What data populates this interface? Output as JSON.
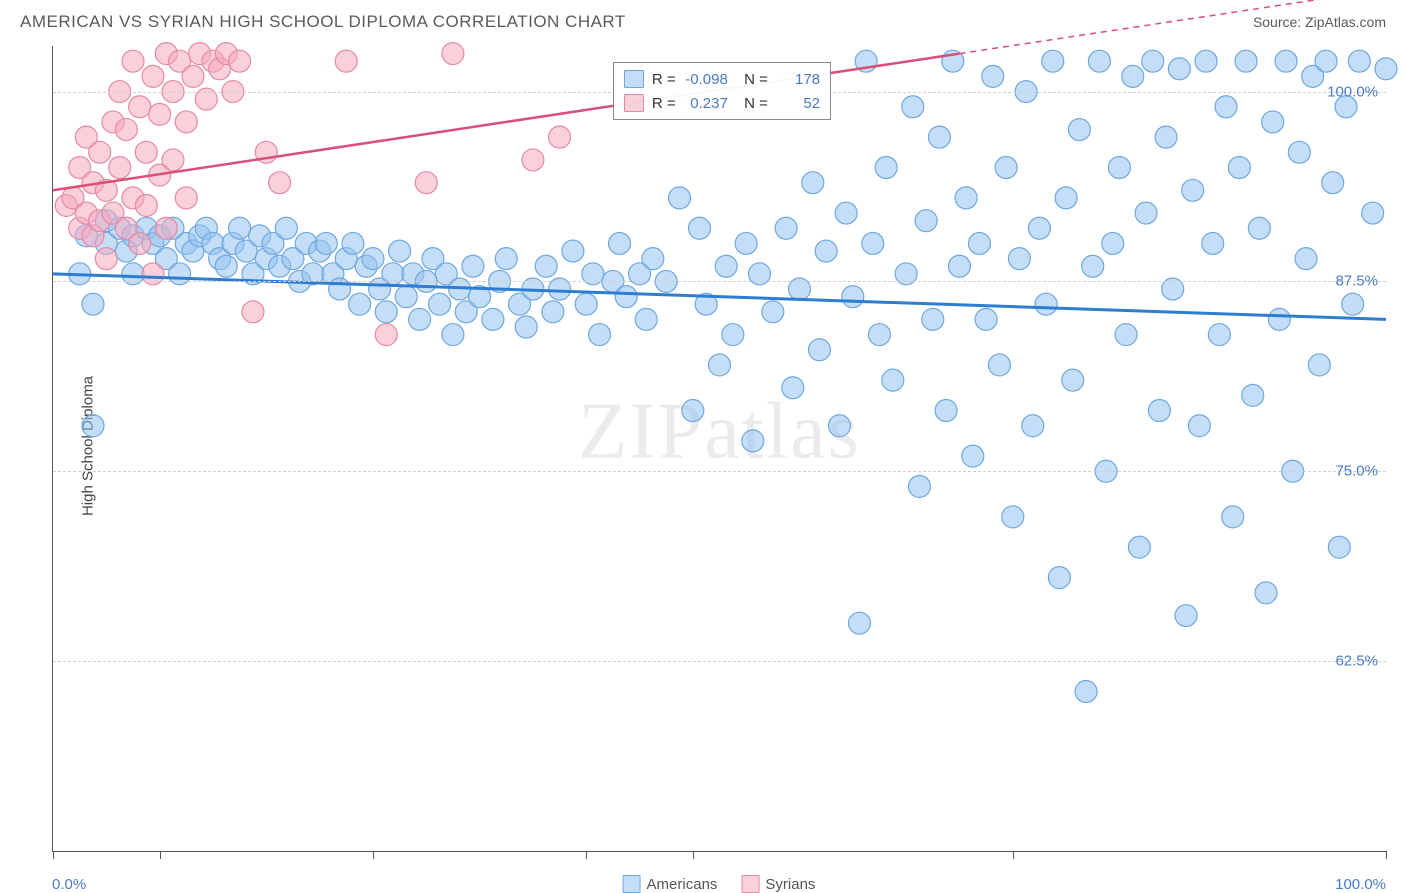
{
  "header": {
    "title": "AMERICAN VS SYRIAN HIGH SCHOOL DIPLOMA CORRELATION CHART",
    "source": "Source: ZipAtlas.com"
  },
  "chart": {
    "type": "scatter",
    "ylabel": "High School Diploma",
    "watermark": "ZIPatlas",
    "xlim": [
      0,
      100
    ],
    "ylim": [
      50,
      103
    ],
    "xtick_positions": [
      0,
      8,
      24,
      40,
      48,
      72,
      100
    ],
    "xaxis_min_label": "0.0%",
    "xaxis_max_label": "100.0%",
    "yticks": [
      {
        "value": 62.5,
        "label": "62.5%"
      },
      {
        "value": 75.0,
        "label": "75.0%"
      },
      {
        "value": 87.5,
        "label": "87.5%"
      },
      {
        "value": 100.0,
        "label": "100.0%"
      }
    ],
    "grid_color": "#d0d0d0",
    "background_color": "#ffffff",
    "series": [
      {
        "name": "Americans",
        "color_fill": "rgba(150,195,240,0.55)",
        "color_stroke": "#6fa8e0",
        "marker_radius": 11,
        "trend": {
          "x1": 0,
          "y1": 88.0,
          "x2": 100,
          "y2": 85.0,
          "color": "#2d7dd2",
          "width": 3
        },
        "corr_R": "-0.098",
        "corr_N": "178",
        "points": [
          [
            2,
            88
          ],
          [
            2.5,
            90.5
          ],
          [
            3,
            86
          ],
          [
            3,
            78
          ],
          [
            4,
            90
          ],
          [
            4,
            91.5
          ],
          [
            5,
            91
          ],
          [
            5.5,
            89.5
          ],
          [
            6,
            90.5
          ],
          [
            6,
            88
          ],
          [
            7,
            91
          ],
          [
            7.5,
            90
          ],
          [
            8,
            90.5
          ],
          [
            8.5,
            89
          ],
          [
            9,
            91
          ],
          [
            9.5,
            88
          ],
          [
            10,
            90
          ],
          [
            10.5,
            89.5
          ],
          [
            11,
            90.5
          ],
          [
            11.5,
            91
          ],
          [
            12,
            90
          ],
          [
            12.5,
            89
          ],
          [
            13,
            88.5
          ],
          [
            13.5,
            90
          ],
          [
            14,
            91
          ],
          [
            14.5,
            89.5
          ],
          [
            15,
            88
          ],
          [
            15.5,
            90.5
          ],
          [
            16,
            89
          ],
          [
            16.5,
            90
          ],
          [
            17,
            88.5
          ],
          [
            17.5,
            91
          ],
          [
            18,
            89
          ],
          [
            18.5,
            87.5
          ],
          [
            19,
            90
          ],
          [
            19.5,
            88
          ],
          [
            20,
            89.5
          ],
          [
            20.5,
            90
          ],
          [
            21,
            88
          ],
          [
            21.5,
            87
          ],
          [
            22,
            89
          ],
          [
            22.5,
            90
          ],
          [
            23,
            86
          ],
          [
            23.5,
            88.5
          ],
          [
            24,
            89
          ],
          [
            24.5,
            87
          ],
          [
            25,
            85.5
          ],
          [
            25.5,
            88
          ],
          [
            26,
            89.5
          ],
          [
            26.5,
            86.5
          ],
          [
            27,
            88
          ],
          [
            27.5,
            85
          ],
          [
            28,
            87.5
          ],
          [
            28.5,
            89
          ],
          [
            29,
            86
          ],
          [
            29.5,
            88
          ],
          [
            30,
            84
          ],
          [
            30.5,
            87
          ],
          [
            31,
            85.5
          ],
          [
            31.5,
            88.5
          ],
          [
            32,
            86.5
          ],
          [
            33,
            85
          ],
          [
            33.5,
            87.5
          ],
          [
            34,
            89
          ],
          [
            35,
            86
          ],
          [
            35.5,
            84.5
          ],
          [
            36,
            87
          ],
          [
            37,
            88.5
          ],
          [
            37.5,
            85.5
          ],
          [
            38,
            87
          ],
          [
            39,
            89.5
          ],
          [
            40,
            86
          ],
          [
            40.5,
            88
          ],
          [
            41,
            84
          ],
          [
            42,
            87.5
          ],
          [
            42.5,
            90
          ],
          [
            43,
            86.5
          ],
          [
            44,
            88
          ],
          [
            44.5,
            85
          ],
          [
            45,
            89
          ],
          [
            46,
            87.5
          ],
          [
            47,
            93
          ],
          [
            48,
            79
          ],
          [
            48.5,
            91
          ],
          [
            49,
            86
          ],
          [
            50,
            82
          ],
          [
            50.5,
            88.5
          ],
          [
            51,
            84
          ],
          [
            52,
            90
          ],
          [
            52.5,
            77
          ],
          [
            53,
            88
          ],
          [
            54,
            85.5
          ],
          [
            55,
            91
          ],
          [
            55.5,
            80.5
          ],
          [
            56,
            87
          ],
          [
            57,
            94
          ],
          [
            57.5,
            83
          ],
          [
            58,
            89.5
          ],
          [
            59,
            78
          ],
          [
            59.5,
            92
          ],
          [
            60,
            86.5
          ],
          [
            60.5,
            65
          ],
          [
            61,
            102
          ],
          [
            61.5,
            90
          ],
          [
            62,
            84
          ],
          [
            62.5,
            95
          ],
          [
            63,
            81
          ],
          [
            64,
            88
          ],
          [
            64.5,
            99
          ],
          [
            65,
            74
          ],
          [
            65.5,
            91.5
          ],
          [
            66,
            85
          ],
          [
            66.5,
            97
          ],
          [
            67,
            79
          ],
          [
            67.5,
            102
          ],
          [
            68,
            88.5
          ],
          [
            68.5,
            93
          ],
          [
            69,
            76
          ],
          [
            69.5,
            90
          ],
          [
            70,
            85
          ],
          [
            70.5,
            101
          ],
          [
            71,
            82
          ],
          [
            71.5,
            95
          ],
          [
            72,
            72
          ],
          [
            72.5,
            89
          ],
          [
            73,
            100
          ],
          [
            73.5,
            78
          ],
          [
            74,
            91
          ],
          [
            74.5,
            86
          ],
          [
            75,
            102
          ],
          [
            75.5,
            68
          ],
          [
            76,
            93
          ],
          [
            76.5,
            81
          ],
          [
            77,
            97.5
          ],
          [
            77.5,
            60.5
          ],
          [
            78,
            88.5
          ],
          [
            78.5,
            102
          ],
          [
            79,
            75
          ],
          [
            79.5,
            90
          ],
          [
            80,
            95
          ],
          [
            80.5,
            84
          ],
          [
            81,
            101
          ],
          [
            81.5,
            70
          ],
          [
            82,
            92
          ],
          [
            82.5,
            102
          ],
          [
            83,
            79
          ],
          [
            83.5,
            97
          ],
          [
            84,
            87
          ],
          [
            84.5,
            101.5
          ],
          [
            85,
            65.5
          ],
          [
            85.5,
            93.5
          ],
          [
            86,
            78
          ],
          [
            86.5,
            102
          ],
          [
            87,
            90
          ],
          [
            87.5,
            84
          ],
          [
            88,
            99
          ],
          [
            88.5,
            72
          ],
          [
            89,
            95
          ],
          [
            89.5,
            102
          ],
          [
            90,
            80
          ],
          [
            90.5,
            91
          ],
          [
            91,
            67
          ],
          [
            91.5,
            98
          ],
          [
            92,
            85
          ],
          [
            92.5,
            102
          ],
          [
            93,
            75
          ],
          [
            93.5,
            96
          ],
          [
            94,
            89
          ],
          [
            94.5,
            101
          ],
          [
            95,
            82
          ],
          [
            95.5,
            102
          ],
          [
            96,
            94
          ],
          [
            96.5,
            70
          ],
          [
            97,
            99
          ],
          [
            97.5,
            86
          ],
          [
            98,
            102
          ],
          [
            99,
            92
          ],
          [
            100,
            101.5
          ]
        ]
      },
      {
        "name": "Syrians",
        "color_fill": "rgba(245,170,190,0.55)",
        "color_stroke": "#e68aa5",
        "marker_radius": 11,
        "trend": {
          "x1": 0,
          "y1": 93.5,
          "x2": 68,
          "y2": 102.5,
          "color": "#d94f78",
          "width": 2.5,
          "extend_dash_to": 100
        },
        "corr_R": "0.237",
        "corr_N": "52",
        "points": [
          [
            1,
            92.5
          ],
          [
            1.5,
            93
          ],
          [
            2,
            91
          ],
          [
            2,
            95
          ],
          [
            2.5,
            92
          ],
          [
            2.5,
            97
          ],
          [
            3,
            90.5
          ],
          [
            3,
            94
          ],
          [
            3.5,
            96
          ],
          [
            3.5,
            91.5
          ],
          [
            4,
            93.5
          ],
          [
            4,
            89
          ],
          [
            4.5,
            98
          ],
          [
            4.5,
            92
          ],
          [
            5,
            95
          ],
          [
            5,
            100
          ],
          [
            5.5,
            91
          ],
          [
            5.5,
            97.5
          ],
          [
            6,
            93
          ],
          [
            6,
            102
          ],
          [
            6.5,
            99
          ],
          [
            6.5,
            90
          ],
          [
            7,
            96
          ],
          [
            7,
            92.5
          ],
          [
            7.5,
            101
          ],
          [
            7.5,
            88
          ],
          [
            8,
            94.5
          ],
          [
            8,
            98.5
          ],
          [
            8.5,
            102.5
          ],
          [
            8.5,
            91
          ],
          [
            9,
            100
          ],
          [
            9,
            95.5
          ],
          [
            9.5,
            102
          ],
          [
            10,
            93
          ],
          [
            10,
            98
          ],
          [
            10.5,
            101
          ],
          [
            11,
            102.5
          ],
          [
            11.5,
            99.5
          ],
          [
            12,
            102
          ],
          [
            12.5,
            101.5
          ],
          [
            13,
            102.5
          ],
          [
            13.5,
            100
          ],
          [
            14,
            102
          ],
          [
            15,
            85.5
          ],
          [
            16,
            96
          ],
          [
            17,
            94
          ],
          [
            22,
            102
          ],
          [
            25,
            84
          ],
          [
            28,
            94
          ],
          [
            30,
            102.5
          ],
          [
            36,
            95.5
          ],
          [
            38,
            97
          ]
        ]
      }
    ],
    "ytick_label_color": "#4a7bc8",
    "xlabel_color": "#4a7bc8",
    "correlation_box": {
      "top_pct": 2,
      "left_pct": 42
    },
    "legend_labels": [
      "Americans",
      "Syrians"
    ]
  }
}
